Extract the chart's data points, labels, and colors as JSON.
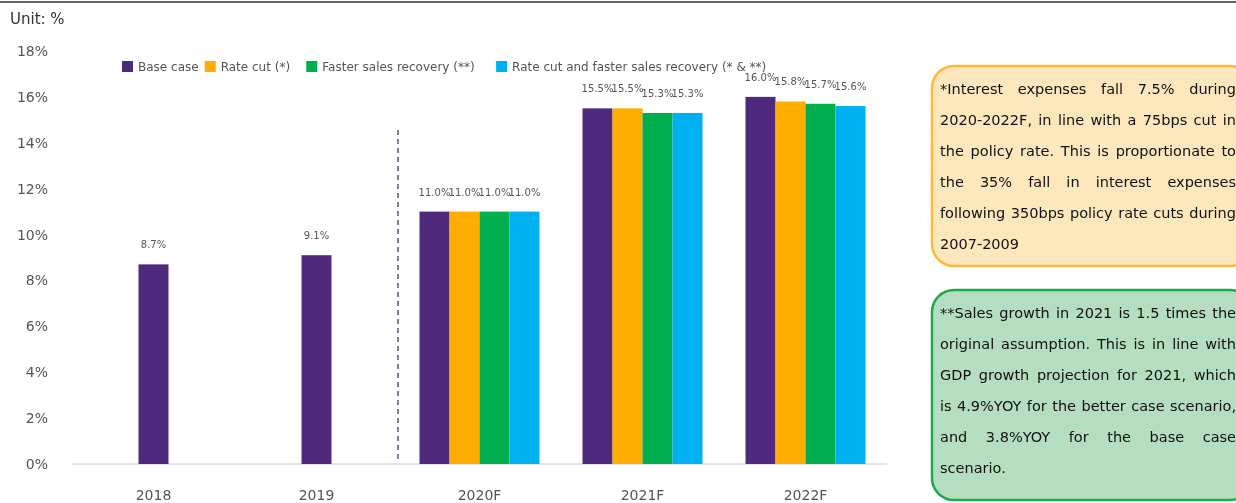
{
  "chart_data": {
    "type": "bar",
    "ylabel": "Unit: %",
    "categories": [
      "2018",
      "2019",
      "2020F",
      "2021F",
      "2022F"
    ],
    "series": [
      {
        "name": "Base case",
        "color": "#4f2a7c",
        "values": [
          8.7,
          9.1,
          11.0,
          15.5,
          16.0
        ],
        "value_labels": [
          "8.7%",
          "9.1%",
          "11.0%",
          "15.5%",
          "16.0%"
        ]
      },
      {
        "name": "Rate cut (*)",
        "color": "#ffad00",
        "values": [
          null,
          null,
          11.0,
          15.5,
          15.8
        ],
        "value_labels": [
          null,
          null,
          "11.0%",
          "15.5%",
          "15.8%"
        ]
      },
      {
        "name": "Faster sales recovery (**)",
        "color": "#00ad4f",
        "values": [
          null,
          null,
          11.0,
          15.3,
          15.7
        ],
        "value_labels": [
          null,
          null,
          "11.0%",
          "15.3%",
          "15.7%"
        ]
      },
      {
        "name": "Rate cut and faster sales recovery (* & **)",
        "color": "#00b0f0",
        "values": [
          null,
          null,
          11.0,
          15.3,
          15.6
        ],
        "value_labels": [
          null,
          null,
          "11.0%",
          "15.3%",
          "15.6%"
        ]
      }
    ],
    "ylim": [
      0,
      18
    ],
    "yticks": [
      {
        "value": 0,
        "label": "0%"
      },
      {
        "value": 2,
        "label": "2%"
      },
      {
        "value": 4,
        "label": "4%"
      },
      {
        "value": 6,
        "label": "6%"
      },
      {
        "value": 8,
        "label": "8%"
      },
      {
        "value": 10,
        "label": "10%"
      },
      {
        "value": 12,
        "label": "12%"
      },
      {
        "value": 14,
        "label": "14%"
      },
      {
        "value": 16,
        "label": "16%"
      },
      {
        "value": 18,
        "label": "18%"
      }
    ],
    "grid": false,
    "legend": "top",
    "annotations": [
      "*Interest expenses fall 7.5% during 2020-2022F, in line with a 75bps cut in the policy rate. This is proportionate to the 35% fall in interest expenses following 350bps policy rate cuts during 2007-2009",
      "**Sales growth in 2021 is 1.5 times the original assumption. This is in line with GDP growth projection for 2021, which is 4.9%YOY for the better case scenario, and 3.8%YOY for the base case scenario."
    ]
  }
}
